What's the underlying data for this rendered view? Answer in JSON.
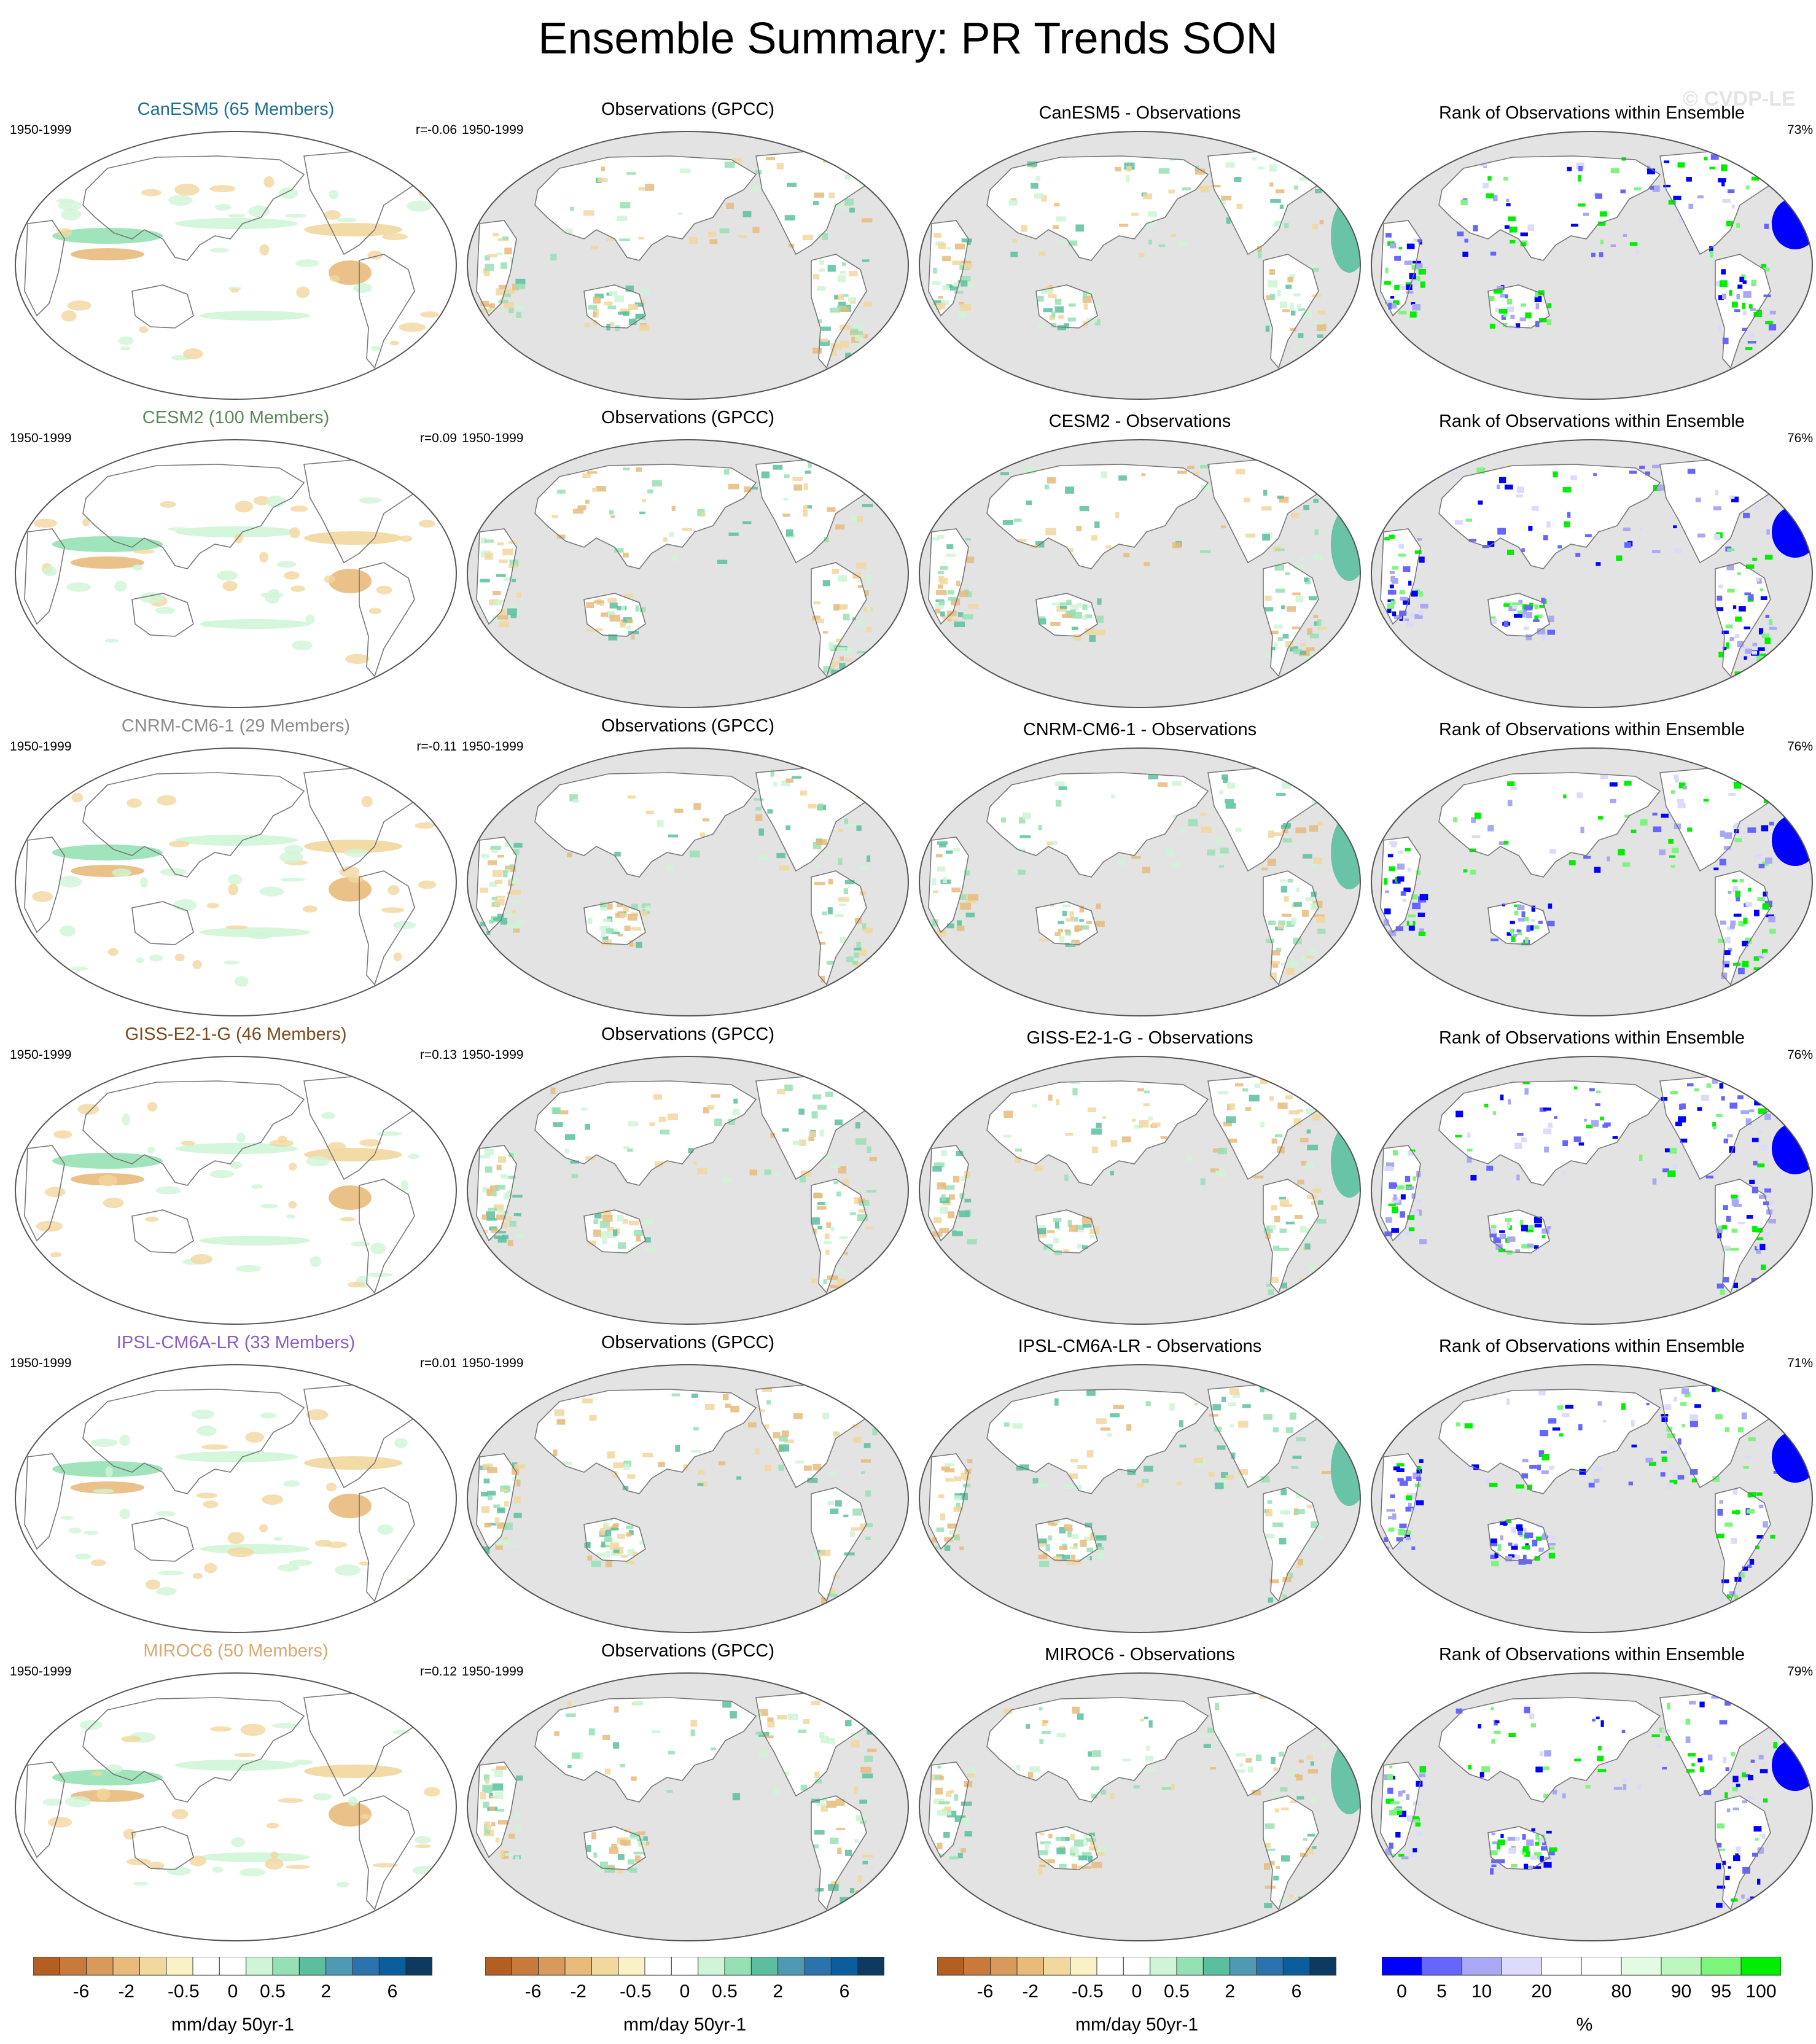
{
  "page_title": "Ensemble Summary: PR Trends SON",
  "watermark": "© CVDP-LE",
  "chart_data": {
    "type": "heatmap",
    "title": "Ensemble Summary: PR Trends SON",
    "rows": [
      {
        "model": "CanESM5 (65 Members)",
        "model_color": "#1f6f8b",
        "period": "1950-1999",
        "r": "r=-0.06",
        "obs_title": "Observations (GPCC)",
        "obs_period": "1950-1999",
        "diff_title": "CanESM5 - Observations",
        "rank_title": "Rank of Observations within Ensemble",
        "rank_pct": "73%"
      },
      {
        "model": "CESM2 (100 Members)",
        "model_color": "#5a8a5a",
        "period": "1950-1999",
        "r": "r=0.09",
        "obs_title": "Observations (GPCC)",
        "obs_period": "1950-1999",
        "diff_title": "CESM2 - Observations",
        "rank_title": "Rank of Observations within Ensemble",
        "rank_pct": "76%"
      },
      {
        "model": "CNRM-CM6-1 (29 Members)",
        "model_color": "#8c8c8c",
        "period": "1950-1999",
        "r": "r=-0.11",
        "obs_title": "Observations (GPCC)",
        "obs_period": "1950-1999",
        "diff_title": "CNRM-CM6-1 - Observations",
        "rank_title": "Rank of Observations within Ensemble",
        "rank_pct": "76%"
      },
      {
        "model": "GISS-E2-1-G (46 Members)",
        "model_color": "#7a4a1e",
        "period": "1950-1999",
        "r": "r=0.13",
        "obs_title": "Observations (GPCC)",
        "obs_period": "1950-1999",
        "diff_title": "GISS-E2-1-G - Observations",
        "rank_title": "Rank of Observations within Ensemble",
        "rank_pct": "76%"
      },
      {
        "model": "IPSL-CM6A-LR (33 Members)",
        "model_color": "#8a5ccc",
        "period": "1950-1999",
        "r": "r=0.01",
        "obs_title": "Observations (GPCC)",
        "obs_period": "1950-1999",
        "diff_title": "IPSL-CM6A-LR - Observations",
        "rank_title": "Rank of Observations within Ensemble",
        "rank_pct": "71%"
      },
      {
        "model": "MIROC6 (50 Members)",
        "model_color": "#d9a870",
        "period": "1950-1999",
        "r": "r=0.12",
        "obs_title": "Observations (GPCC)",
        "obs_period": "1950-1999",
        "diff_title": "MIROC6 - Observations",
        "rank_title": "Rank of Observations within Ensemble",
        "rank_pct": "79%"
      }
    ],
    "trend_colorbar": {
      "colors": [
        "#b35f23",
        "#c77a3c",
        "#d9995a",
        "#e8bb7c",
        "#f2d79f",
        "#fbf1c7",
        "#ffffff",
        "#ffffff",
        "#cff5d6",
        "#96e1b4",
        "#5bbf9f",
        "#4f99b3",
        "#2c72ad",
        "#0b5d9c",
        "#0d3a5e"
      ],
      "tick_labels": [
        "-6",
        "-2",
        "-0.5",
        "0",
        "0.5",
        "2",
        "6"
      ],
      "units": "mm/day 50yr-1"
    },
    "rank_colorbar": {
      "colors": [
        "#0000ff",
        "#6666ff",
        "#a8a8f5",
        "#dcdcfa",
        "#ffffff",
        "#ffffff",
        "#e2fbe2",
        "#bdf7bd",
        "#7df57d",
        "#00ee00"
      ],
      "tick_labels": [
        "0",
        "5",
        "10",
        "20",
        "80",
        "90",
        "95",
        "100"
      ],
      "units": "%"
    }
  }
}
